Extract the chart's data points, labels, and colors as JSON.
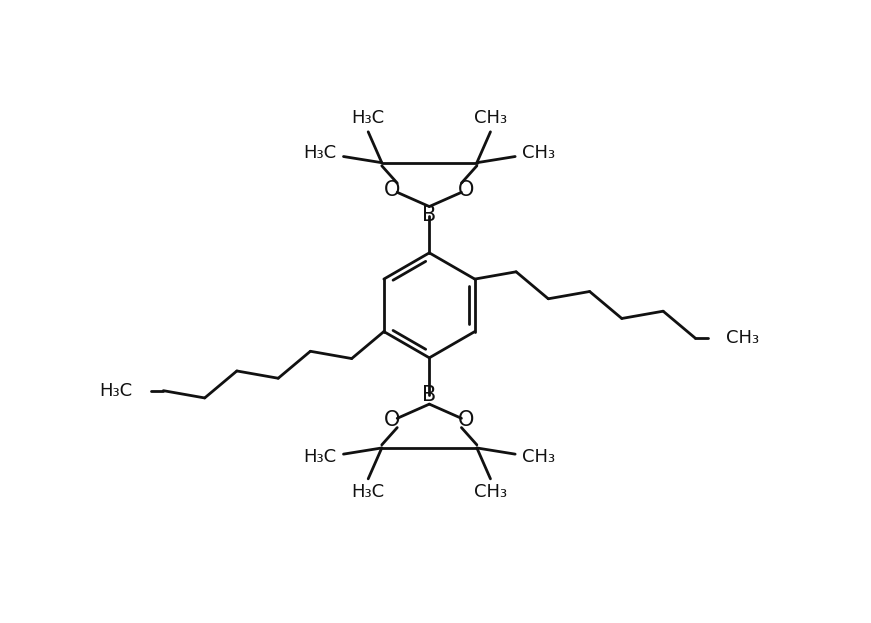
{
  "background_color": "#ffffff",
  "line_color": "#111111",
  "line_width": 2.0,
  "font_size": 14,
  "figsize": [
    8.71,
    6.23
  ],
  "dpi": 100,
  "xlim": [
    0,
    10
  ],
  "ylim": [
    0,
    10
  ]
}
